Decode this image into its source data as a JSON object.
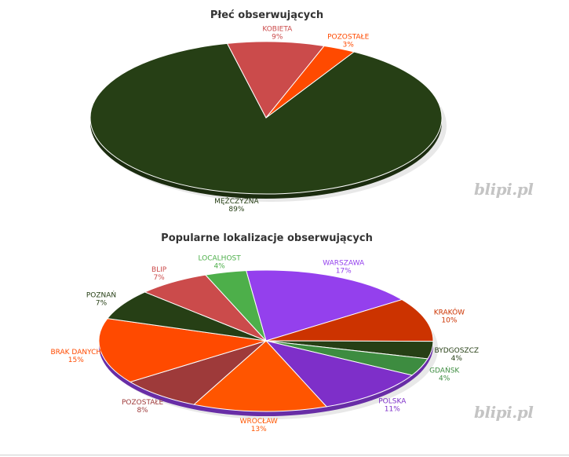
{
  "chart_data": [
    {
      "type": "pie",
      "title": "Płeć obserwujących",
      "slices": [
        {
          "label": "MĘŻCZYZNA",
          "value": 89,
          "pct_label": "89%",
          "color": "#263f15",
          "label_color": "#263f15"
        },
        {
          "label": "KOBIETA",
          "value": 9,
          "pct_label": "9%",
          "color": "#cb4b4b",
          "label_color": "#cb4b4b"
        },
        {
          "label": "POZOSTAŁE",
          "value": 3,
          "pct_label": "3%",
          "color": "#ff4a00",
          "label_color": "#ff4a00"
        }
      ]
    },
    {
      "type": "pie",
      "title": "Popularne lokalizacje obserwujących",
      "slices": [
        {
          "label": "WARSZAWA",
          "value": 17,
          "pct_label": "17%",
          "color": "#9440ed",
          "label_color": "#9440ed"
        },
        {
          "label": "KRAKÓW",
          "value": 10,
          "pct_label": "10%",
          "color": "#cc3300",
          "label_color": "#cc3300"
        },
        {
          "label": "BYDGOSZCZ",
          "value": 4,
          "pct_label": "4%",
          "color": "#263f15",
          "label_color": "#263f15"
        },
        {
          "label": "GDAŃSK",
          "value": 4,
          "pct_label": "4%",
          "color": "#3d8c40",
          "label_color": "#3d8c40"
        },
        {
          "label": "POLSKA",
          "value": 11,
          "pct_label": "11%",
          "color": "#7e2fc9",
          "label_color": "#7e2fc9"
        },
        {
          "label": "WROCŁAW",
          "value": 13,
          "pct_label": "13%",
          "color": "#ff5500",
          "label_color": "#ff5500"
        },
        {
          "label": "POZOSTAŁE",
          "value": 8,
          "pct_label": "8%",
          "color": "#9e3a3a",
          "label_color": "#9e3a3a"
        },
        {
          "label": "BRAK DANYCH",
          "value": 15,
          "pct_label": "15%",
          "color": "#ff4a00",
          "label_color": "#ff4a00"
        },
        {
          "label": "POZNAŃ",
          "value": 7,
          "pct_label": "7%",
          "color": "#263f15",
          "label_color": "#263f15"
        },
        {
          "label": "BLIP",
          "value": 7,
          "pct_label": "7%",
          "color": "#cb4b4b",
          "label_color": "#cb4b4b"
        },
        {
          "label": "LOCALHOST",
          "value": 4,
          "pct_label": "4%",
          "color": "#4daf4a",
          "label_color": "#4daf4a"
        }
      ]
    }
  ],
  "watermark": "blipi.pl"
}
